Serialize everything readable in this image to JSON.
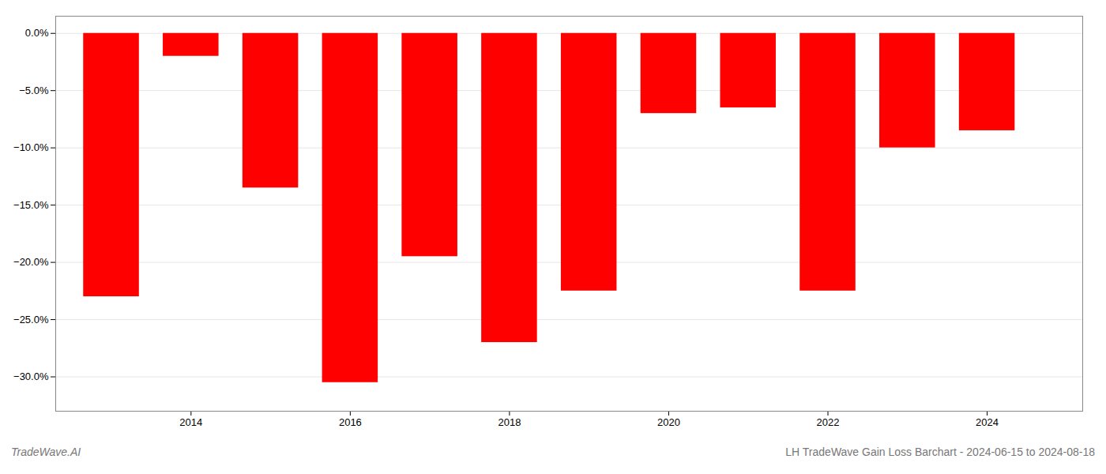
{
  "chart_data": {
    "type": "bar",
    "x": [
      2013,
      2014,
      2015,
      2016,
      2017,
      2018,
      2019,
      2020,
      2021,
      2022,
      2023,
      2024
    ],
    "values": [
      -23.0,
      -2.0,
      -13.5,
      -30.5,
      -19.5,
      -27.0,
      -22.5,
      -7.0,
      -6.5,
      -22.5,
      -10.0,
      -8.5
    ],
    "color": "#ff0000",
    "xlim": [
      2012.3,
      2025.2
    ],
    "xticks": [
      2014,
      2016,
      2018,
      2020,
      2022,
      2024
    ],
    "ylim": [
      -33,
      1.5
    ],
    "yticks": [
      {
        "value": 0.0,
        "label": "0.0%"
      },
      {
        "value": -5.0,
        "label": "−5.0%"
      },
      {
        "value": -10.0,
        "label": "−10.0%"
      },
      {
        "value": -15.0,
        "label": "−15.0%"
      },
      {
        "value": -20.0,
        "label": "−20.0%"
      },
      {
        "value": -25.0,
        "label": "−25.0%"
      },
      {
        "value": -30.0,
        "label": "−30.0%"
      }
    ],
    "grid": true,
    "annotations": [
      "TradeWave.AI",
      "LH TradeWave Gain Loss Barchart - 2024-06-15 to 2024-08-18"
    ]
  }
}
